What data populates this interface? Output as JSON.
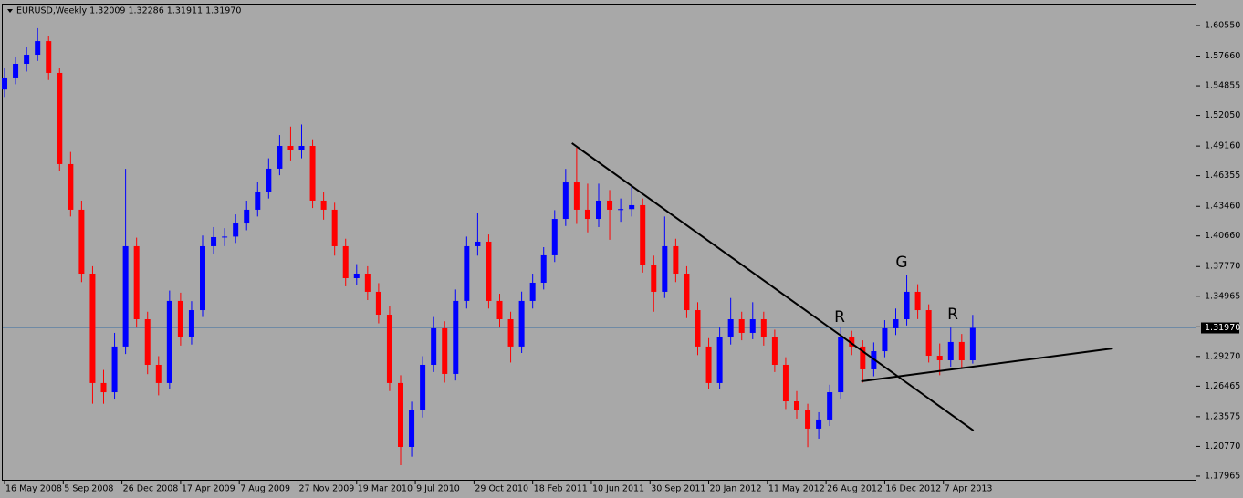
{
  "chart_data": {
    "type": "candlestick",
    "title": "EURUSD,Weekly  1.32009 1.32286 1.31911 1.31970",
    "up_color": "#0000ff",
    "down_color": "#ff0000",
    "xlim": [
      -0.5,
      325
    ],
    "ylim": [
      1.1753,
      1.6262
    ],
    "xticks": [
      {
        "value": 0,
        "label": "16 May 2008"
      },
      {
        "value": 16,
        "label": "5 Sep 2008"
      },
      {
        "value": 32,
        "label": "26 Dec 2008"
      },
      {
        "value": 48,
        "label": "17 Apr 2009"
      },
      {
        "value": 64,
        "label": "7 Aug 2009"
      },
      {
        "value": 80,
        "label": "27 Nov 2009"
      },
      {
        "value": 96,
        "label": "19 Mar 2010"
      },
      {
        "value": 112,
        "label": "9 Jul 2010"
      },
      {
        "value": 128,
        "label": "29 Oct 2010"
      },
      {
        "value": 144,
        "label": "18 Feb 2011"
      },
      {
        "value": 160,
        "label": "10 Jun 2011"
      },
      {
        "value": 176,
        "label": "30 Sep 2011"
      },
      {
        "value": 192,
        "label": "20 Jan 2012"
      },
      {
        "value": 208,
        "label": "11 May 2012"
      },
      {
        "value": 224,
        "label": "26 Aug 2012"
      },
      {
        "value": 240,
        "label": "16 Dec 2012"
      },
      {
        "value": 256,
        "label": "7 Apr 2013"
      }
    ],
    "yticks": [
      {
        "value": 1.6055,
        "label": "1.60550"
      },
      {
        "value": 1.5766,
        "label": "1.57660"
      },
      {
        "value": 1.54855,
        "label": "1.54855"
      },
      {
        "value": 1.5205,
        "label": "1.52050"
      },
      {
        "value": 1.4916,
        "label": "1.49160"
      },
      {
        "value": 1.46355,
        "label": "1.46355"
      },
      {
        "value": 1.4346,
        "label": "1.43460"
      },
      {
        "value": 1.4066,
        "label": "1.40660"
      },
      {
        "value": 1.3777,
        "label": "1.37770"
      },
      {
        "value": 1.34965,
        "label": "1.34965"
      },
      {
        "value": 1.3207,
        "label": "1.32070"
      },
      {
        "value": 1.2927,
        "label": "1.29270"
      },
      {
        "value": 1.26465,
        "label": "1.26465"
      },
      {
        "value": 1.23575,
        "label": "1.23575"
      },
      {
        "value": 1.2077,
        "label": "1.20770"
      },
      {
        "value": 1.17965,
        "label": "1.17965"
      }
    ],
    "current_price": {
      "value": 1.3197,
      "label": "1.31970"
    },
    "x": [
      0,
      3,
      6,
      9,
      12,
      15,
      18,
      21,
      24,
      27,
      30,
      33,
      36,
      39,
      42,
      45,
      48,
      51,
      54,
      57,
      60,
      63,
      66,
      69,
      72,
      75,
      78,
      81,
      84,
      87,
      90,
      93,
      96,
      99,
      102,
      105,
      108,
      111,
      114,
      117,
      120,
      123,
      126,
      129,
      132,
      135,
      138,
      141,
      144,
      147,
      150,
      153,
      156,
      159,
      162,
      165,
      168,
      171,
      174,
      177,
      180,
      183,
      186,
      189,
      192,
      195,
      198,
      201,
      204,
      207,
      210,
      213,
      216,
      219,
      222,
      225,
      228,
      231,
      234,
      237,
      240,
      243,
      246,
      249,
      252,
      255,
      258,
      261,
      264
    ],
    "open": [
      1.545,
      1.5564,
      1.5693,
      1.5779,
      1.5908,
      1.5607,
      1.4745,
      1.4314,
      1.371,
      1.2676,
      1.2589,
      1.3021,
      1.3969,
      1.3279,
      1.2848,
      1.2676,
      1.3452,
      1.3107,
      1.3365,
      1.3969,
      1.4055,
      1.406,
      1.4184,
      1.4314,
      1.4486,
      1.4702,
      1.4917,
      1.4874,
      1.4917,
      1.44,
      1.4314,
      1.3969,
      1.3667,
      1.371,
      1.3538,
      1.3322,
      1.2676,
      1.2072,
      1.2417,
      1.2848,
      1.3193,
      1.2762,
      1.3452,
      1.3969,
      1.4012,
      1.3452,
      1.3279,
      1.3021,
      1.3452,
      1.3624,
      1.3883,
      1.4227,
      1.4572,
      1.4314,
      1.4227,
      1.44,
      1.4314,
      1.432,
      1.4357,
      1.3796,
      1.3538,
      1.3969,
      1.371,
      1.3365,
      1.3021,
      1.2676,
      1.3107,
      1.3279,
      1.315,
      1.3279,
      1.3107,
      1.2848,
      1.2503,
      1.2417,
      1.2245,
      1.2331,
      1.2589,
      1.3107,
      1.3021,
      1.2805,
      1.2977,
      1.3193,
      1.3279,
      1.3538,
      1.3365,
      1.2934,
      1.2891,
      1.3064,
      1.2891
    ],
    "high": [
      1.565,
      1.576,
      1.585,
      1.603,
      1.596,
      1.565,
      1.486,
      1.44,
      1.378,
      1.28,
      1.315,
      1.47,
      1.405,
      1.335,
      1.293,
      1.355,
      1.353,
      1.345,
      1.407,
      1.415,
      1.414,
      1.427,
      1.44,
      1.458,
      1.48,
      1.502,
      1.51,
      1.512,
      1.498,
      1.448,
      1.438,
      1.404,
      1.38,
      1.378,
      1.362,
      1.34,
      1.275,
      1.25,
      1.293,
      1.33,
      1.326,
      1.356,
      1.406,
      1.428,
      1.408,
      1.352,
      1.335,
      1.354,
      1.371,
      1.396,
      1.431,
      1.47,
      1.49,
      1.456,
      1.456,
      1.45,
      1.442,
      1.454,
      1.442,
      1.388,
      1.425,
      1.404,
      1.378,
      1.344,
      1.31,
      1.32,
      1.348,
      1.335,
      1.344,
      1.335,
      1.318,
      1.292,
      1.26,
      1.248,
      1.24,
      1.266,
      1.32,
      1.317,
      1.308,
      1.306,
      1.327,
      1.338,
      1.37,
      1.361,
      1.342,
      1.305,
      1.32,
      1.314,
      1.332
    ],
    "low": [
      1.538,
      1.55,
      1.562,
      1.572,
      1.554,
      1.468,
      1.425,
      1.363,
      1.248,
      1.248,
      1.252,
      1.295,
      1.32,
      1.276,
      1.256,
      1.262,
      1.303,
      1.304,
      1.33,
      1.39,
      1.397,
      1.4,
      1.412,
      1.425,
      1.442,
      1.464,
      1.478,
      1.48,
      1.433,
      1.422,
      1.388,
      1.359,
      1.36,
      1.346,
      1.324,
      1.26,
      1.19,
      1.198,
      1.235,
      1.278,
      1.268,
      1.27,
      1.338,
      1.388,
      1.338,
      1.32,
      1.287,
      1.296,
      1.338,
      1.356,
      1.382,
      1.416,
      1.418,
      1.41,
      1.415,
      1.403,
      1.42,
      1.425,
      1.372,
      1.335,
      1.348,
      1.363,
      1.329,
      1.294,
      1.262,
      1.262,
      1.304,
      1.308,
      1.309,
      1.303,
      1.278,
      1.243,
      1.234,
      1.207,
      1.215,
      1.227,
      1.252,
      1.294,
      1.268,
      1.274,
      1.292,
      1.313,
      1.322,
      1.328,
      1.287,
      1.275,
      1.283,
      1.281,
      1.286
    ],
    "close": [
      1.5564,
      1.5693,
      1.5779,
      1.5908,
      1.5607,
      1.4745,
      1.4314,
      1.371,
      1.2676,
      1.2589,
      1.3021,
      1.3969,
      1.3279,
      1.2848,
      1.2676,
      1.3452,
      1.3107,
      1.3365,
      1.3969,
      1.4055,
      1.406,
      1.4184,
      1.4314,
      1.4486,
      1.4702,
      1.4917,
      1.4874,
      1.4917,
      1.44,
      1.4314,
      1.3969,
      1.3667,
      1.371,
      1.3538,
      1.3322,
      1.2676,
      1.2072,
      1.2417,
      1.2848,
      1.3193,
      1.2762,
      1.3452,
      1.3969,
      1.4012,
      1.3452,
      1.3279,
      1.3021,
      1.3452,
      1.3624,
      1.3883,
      1.4227,
      1.4572,
      1.4314,
      1.4227,
      1.44,
      1.4314,
      1.432,
      1.4357,
      1.3796,
      1.3538,
      1.3969,
      1.371,
      1.3365,
      1.3021,
      1.2676,
      1.3107,
      1.3279,
      1.315,
      1.3279,
      1.3107,
      1.2848,
      1.2503,
      1.2417,
      1.2245,
      1.2331,
      1.2589,
      1.3107,
      1.3021,
      1.2805,
      1.2977,
      1.3193,
      1.3279,
      1.3538,
      1.3365,
      1.2934,
      1.2891,
      1.3064,
      1.2891,
      1.3197
    ],
    "trendlines": [
      {
        "x": [
          154.7,
          264.2
        ],
        "y": [
          1.4943,
          1.2227
        ]
      },
      {
        "x": [
          233.6,
          302.2
        ],
        "y": [
          1.2693,
          1.3003
        ]
      }
    ],
    "annotations": [
      "R",
      "G",
      "R"
    ]
  }
}
